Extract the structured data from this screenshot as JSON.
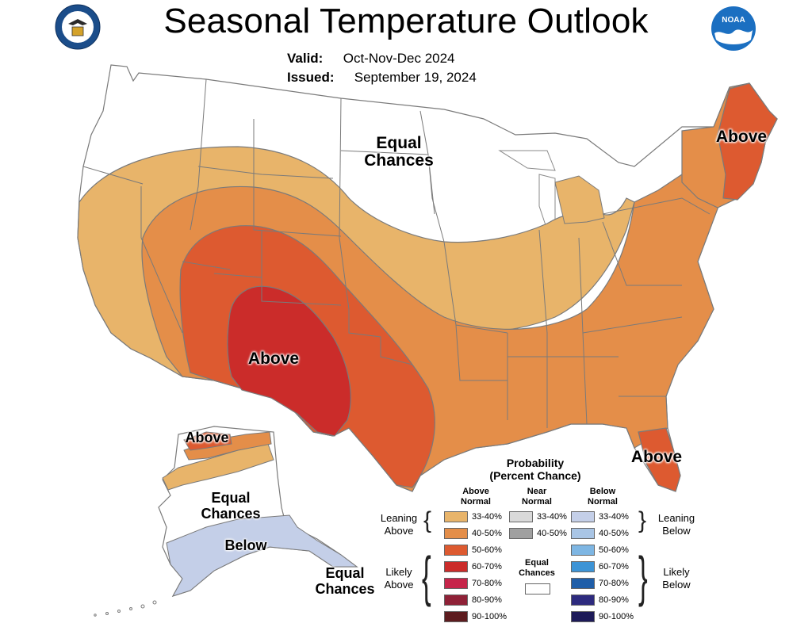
{
  "header": {
    "title": "Seasonal Temperature Outlook",
    "valid_label": "Valid:",
    "valid_value": "Oct-Nov-Dec 2024",
    "issued_label": "Issued:",
    "issued_value": "September 19, 2024"
  },
  "logos": {
    "left": "commerce-seal-icon",
    "right": "noaa-logo-icon",
    "right_text": "NOAA"
  },
  "map_labels": {
    "conus_equal": [
      "Equal",
      "Chances"
    ],
    "northeast_above": "Above",
    "southwest_above": "Above",
    "florida_above": "Above",
    "alaska_above": "Above",
    "alaska_equal": [
      "Equal",
      "Chances"
    ],
    "alaska_below": "Below",
    "panhandle_equal": [
      "Equal",
      "Chances"
    ]
  },
  "colors": {
    "equal": "#ffffff",
    "above_33_40": "#e8b46a",
    "above_40_50": "#e48e49",
    "above_50_60": "#dd5a30",
    "above_60_70": "#cb2c2a",
    "above_70_80": "#c6254a",
    "above_80_90": "#8f2137",
    "above_90_100": "#5d1c1f",
    "near_33_40": "#d9d9d9",
    "near_40_50": "#a0a0a0",
    "below_33_40": "#c4cfe8",
    "below_40_50": "#a9c5e5",
    "below_50_60": "#7eb6e3",
    "below_60_70": "#3d94d6",
    "below_70_80": "#1f5ea8",
    "below_80_90": "#2d2a7e",
    "below_90_100": "#1d1a58",
    "state_line": "#7a7a7a"
  },
  "legend": {
    "title": [
      "Probability",
      "(Percent Chance)"
    ],
    "col_above": [
      "Above",
      "Normal"
    ],
    "col_near": [
      "Near",
      "Normal"
    ],
    "col_below": [
      "Below",
      "Normal"
    ],
    "leaning_above": [
      "Leaning",
      "Above"
    ],
    "likely_above": [
      "Likely",
      "Above"
    ],
    "leaning_below": [
      "Leaning",
      "Below"
    ],
    "likely_below": [
      "Likely",
      "Below"
    ],
    "equal_chances": [
      "Equal",
      "Chances"
    ],
    "above_rows": [
      "33-40%",
      "40-50%",
      "50-60%",
      "60-70%",
      "70-80%",
      "80-90%",
      "90-100%"
    ],
    "near_rows": [
      "33-40%",
      "40-50%"
    ],
    "below_rows": [
      "33-40%",
      "40-50%",
      "50-60%",
      "60-70%",
      "70-80%",
      "80-90%",
      "90-100%"
    ]
  }
}
